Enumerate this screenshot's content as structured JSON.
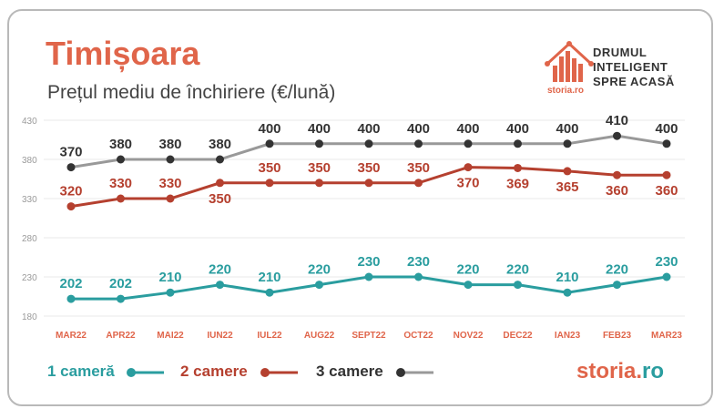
{
  "header": {
    "title": "Timișoara",
    "subtitle": "Prețul mediu de închiriere (€/lună)"
  },
  "brand": {
    "tagline_1": "DRUMUL",
    "tagline_2": "INTELIGENT",
    "tagline_3": "SPRE ACASĂ",
    "small_logo": "storia.ro",
    "logo_main": "storia.",
    "logo_tld": "ro"
  },
  "colors": {
    "accent": "#e0654a",
    "series_1": "#2a9d9f",
    "series_2": "#b5402f",
    "series_3_line": "#999999",
    "series_3_marker": "#333333"
  },
  "chart_data": {
    "type": "line",
    "categories": [
      "MAR22",
      "APR22",
      "MAI22",
      "IUN22",
      "IUL22",
      "AUG22",
      "SEPT22",
      "OCT22",
      "NOV22",
      "DEC22",
      "IAN23",
      "FEB23",
      "MAR23"
    ],
    "y_ticks": [
      180,
      230,
      280,
      330,
      380,
      430
    ],
    "ylim": [
      180,
      430
    ],
    "grid": true,
    "legend": "bottom-left",
    "series": [
      {
        "name": "1 cameră",
        "values": [
          202,
          202,
          210,
          220,
          210,
          220,
          230,
          230,
          220,
          220,
          210,
          220,
          230
        ]
      },
      {
        "name": "2 camere",
        "values": [
          320,
          330,
          330,
          350,
          350,
          350,
          350,
          350,
          370,
          369,
          365,
          360,
          360
        ]
      },
      {
        "name": "3 camere",
        "values": [
          370,
          380,
          380,
          380,
          400,
          400,
          400,
          400,
          400,
          400,
          400,
          410,
          400
        ]
      }
    ]
  }
}
